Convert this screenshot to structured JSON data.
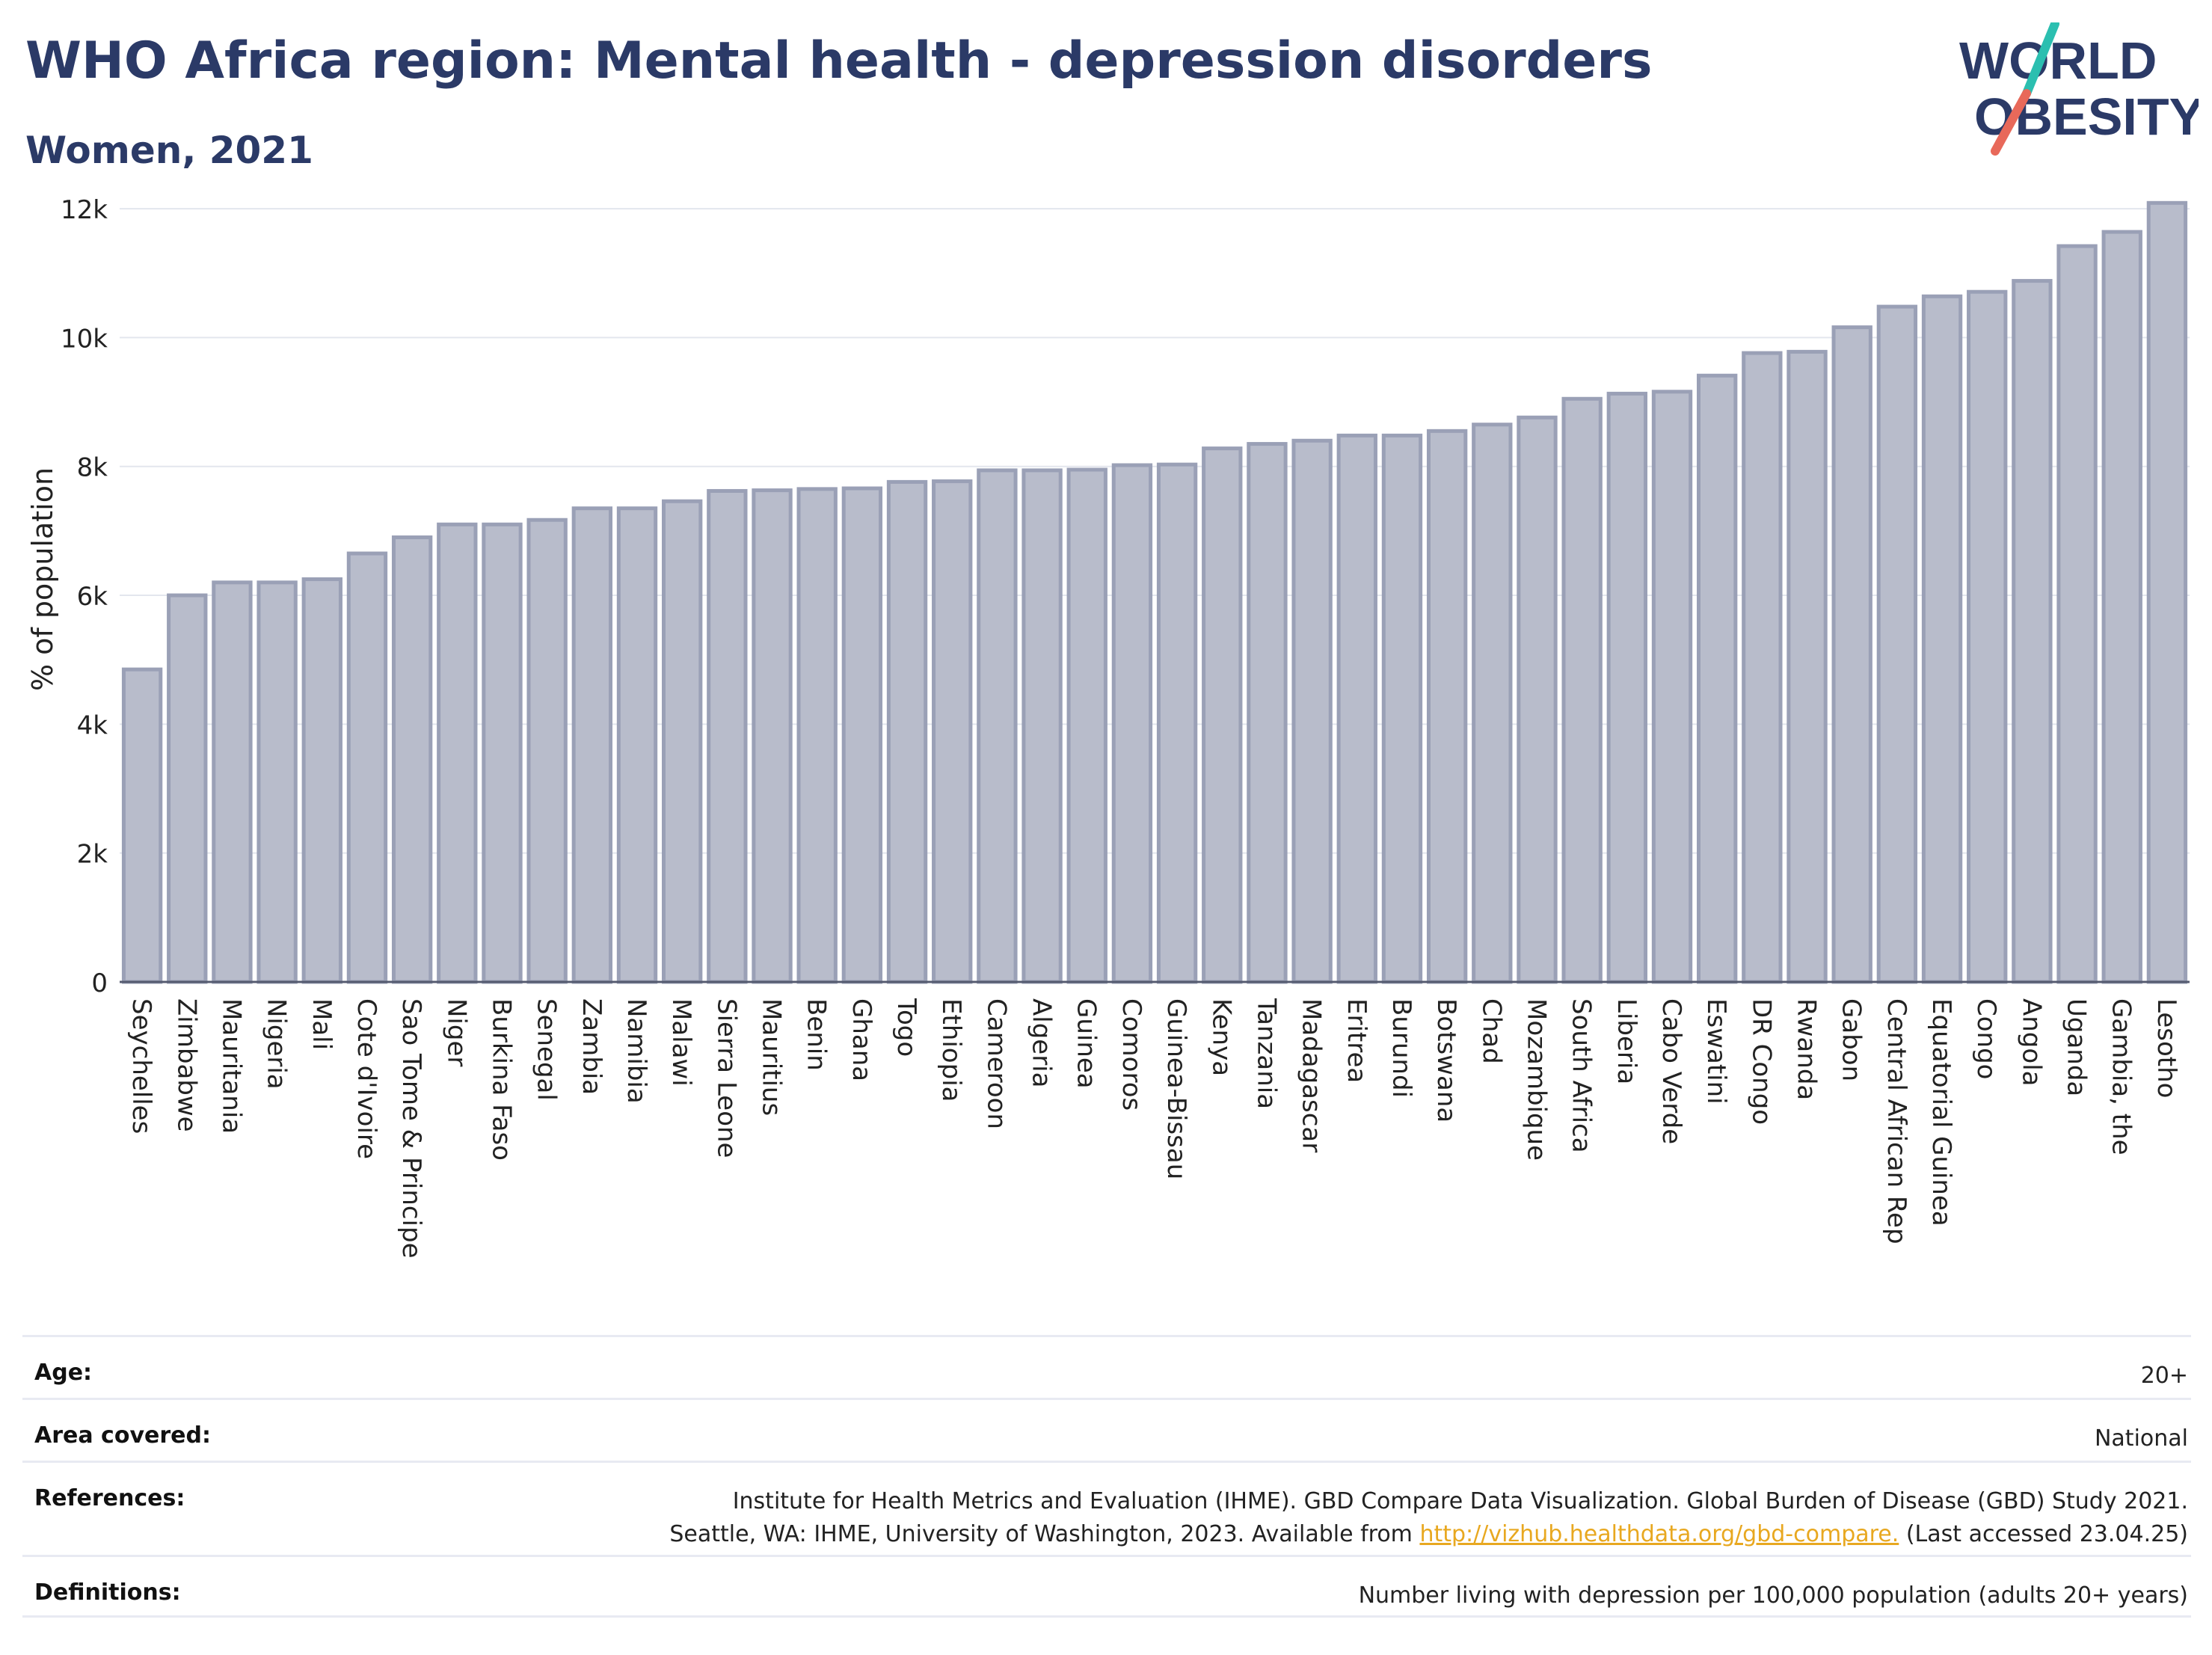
{
  "header": {
    "title": "WHO Africa region: Mental health - depression disorders",
    "subtitle": "Women, 2021"
  },
  "logo": {
    "line1": "WORLD",
    "line2": "OBESITY",
    "colors": {
      "text": "#2b3a67",
      "slash_top": "#2bbfb0",
      "slash_bottom": "#e8695a"
    }
  },
  "chart_data": {
    "type": "bar",
    "ylabel": "% of population",
    "xlabel": "",
    "ylim": [
      0,
      12500
    ],
    "yticks": [
      0,
      2000,
      4000,
      6000,
      8000,
      10000,
      12000
    ],
    "ytick_labels": [
      "0",
      "2k",
      "4k",
      "6k",
      "8k",
      "10k",
      "12k"
    ],
    "grid": true,
    "bar_color": "#b8bccb",
    "bar_edge_color": "#9aa0b6",
    "categories": [
      "Seychelles",
      "Zimbabwe",
      "Mauritania",
      "Nigeria",
      "Mali",
      "Cote d'Ivoire",
      "Sao Tome & Principe",
      "Niger",
      "Burkina Faso",
      "Senegal",
      "Zambia",
      "Namibia",
      "Malawi",
      "Sierra Leone",
      "Mauritius",
      "Benin",
      "Ghana",
      "Togo",
      "Ethiopia",
      "Cameroon",
      "Algeria",
      "Guinea",
      "Comoros",
      "Guinea-Bissau",
      "Kenya",
      "Tanzania",
      "Madagascar",
      "Eritrea",
      "Burundi",
      "Botswana",
      "Chad",
      "Mozambique",
      "South Africa",
      "Liberia",
      "Cabo Verde",
      "Eswatini",
      "DR Congo",
      "Rwanda",
      "Gabon",
      "Central African Rep",
      "Equatorial Guinea",
      "Congo",
      "Angola",
      "Uganda",
      "Gambia, the",
      "Lesotho"
    ],
    "values": [
      4850,
      6000,
      6200,
      6200,
      6250,
      6650,
      6900,
      7100,
      7100,
      7170,
      7350,
      7350,
      7460,
      7620,
      7630,
      7650,
      7660,
      7760,
      7770,
      7940,
      7940,
      7950,
      8020,
      8030,
      8280,
      8350,
      8400,
      8480,
      8480,
      8550,
      8650,
      8760,
      9050,
      9130,
      9160,
      9410,
      9760,
      9780,
      10160,
      10480,
      10640,
      10710,
      10880,
      11420,
      11640,
      12090
    ]
  },
  "meta": {
    "age_label": "Age:",
    "age_value": "20+",
    "area_label": "Area covered:",
    "area_value": "National",
    "references_label": "References:",
    "references_line1": "Institute for Health Metrics and Evaluation (IHME). GBD Compare Data Visualization. Global Burden of Disease (GBD) Study 2021.",
    "references_line2_pre": "Seattle, WA: IHME, University of Washington, 2023. Available from ",
    "references_link": "http://vizhub.healthdata.org/gbd-compare.",
    "references_line2_post": " (Last accessed 23.04.25)",
    "definitions_label": "Definitions:",
    "definitions_value": "Number living with depression per 100,000 population (adults 20+ years)"
  }
}
